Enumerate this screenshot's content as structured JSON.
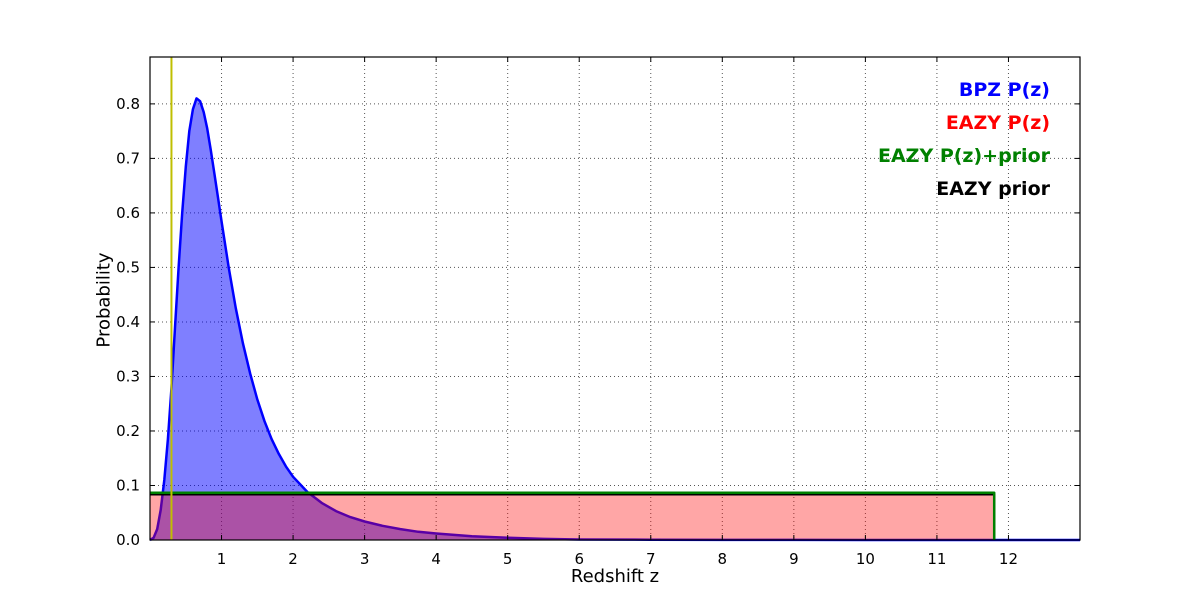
{
  "chart_data": {
    "type": "line",
    "title": "",
    "xlabel": "Redshift z",
    "ylabel": "Probability",
    "xlim": [
      0,
      13
    ],
    "ylim": [
      0,
      0.886
    ],
    "grid": true,
    "legend_position": "upper right",
    "xticks": [
      1,
      2,
      3,
      4,
      5,
      6,
      7,
      8,
      9,
      10,
      11,
      12
    ],
    "xtick_labels": [
      "1",
      "2",
      "3",
      "4",
      "5",
      "6",
      "7",
      "8",
      "9",
      "10",
      "11",
      "12"
    ],
    "yticks": [
      0.0,
      0.1,
      0.2,
      0.3,
      0.4,
      0.5,
      0.6,
      0.7,
      0.8
    ],
    "ytick_labels": [
      "0.0",
      "0.1",
      "0.2",
      "0.3",
      "0.4",
      "0.5",
      "0.6",
      "0.7",
      "0.8"
    ],
    "series": [
      {
        "id": "bpz-pz",
        "name": "BPZ P(z)",
        "color": "#0000ff",
        "fill": "rgba(0,0,255,0.5)",
        "lw": 2.5,
        "points": [
          [
            0.0,
            0.0
          ],
          [
            0.05,
            0.004
          ],
          [
            0.1,
            0.02
          ],
          [
            0.15,
            0.055
          ],
          [
            0.2,
            0.11
          ],
          [
            0.25,
            0.185
          ],
          [
            0.3,
            0.28
          ],
          [
            0.35,
            0.39
          ],
          [
            0.4,
            0.5
          ],
          [
            0.45,
            0.6
          ],
          [
            0.5,
            0.685
          ],
          [
            0.55,
            0.75
          ],
          [
            0.6,
            0.79
          ],
          [
            0.65,
            0.81
          ],
          [
            0.7,
            0.805
          ],
          [
            0.75,
            0.785
          ],
          [
            0.8,
            0.755
          ],
          [
            0.85,
            0.715
          ],
          [
            0.9,
            0.672
          ],
          [
            0.95,
            0.628
          ],
          [
            1.0,
            0.585
          ],
          [
            1.1,
            0.5
          ],
          [
            1.2,
            0.425
          ],
          [
            1.3,
            0.36
          ],
          [
            1.4,
            0.305
          ],
          [
            1.5,
            0.258
          ],
          [
            1.6,
            0.218
          ],
          [
            1.7,
            0.185
          ],
          [
            1.8,
            0.158
          ],
          [
            1.9,
            0.135
          ],
          [
            2.0,
            0.116
          ],
          [
            2.2,
            0.088
          ],
          [
            2.4,
            0.068
          ],
          [
            2.6,
            0.053
          ],
          [
            2.8,
            0.042
          ],
          [
            3.0,
            0.034
          ],
          [
            3.25,
            0.026
          ],
          [
            3.5,
            0.02
          ],
          [
            3.75,
            0.015
          ],
          [
            4.0,
            0.012
          ],
          [
            4.5,
            0.007
          ],
          [
            5.0,
            0.004
          ],
          [
            5.5,
            0.002
          ],
          [
            6.0,
            0.001
          ],
          [
            7.0,
            0.0005
          ],
          [
            8.0,
            0.0002
          ],
          [
            9.0,
            0.0001
          ],
          [
            10.0,
            0.0
          ],
          [
            13.0,
            0.0
          ]
        ]
      },
      {
        "id": "eazy-pz",
        "name": "EAZY P(z)",
        "color": "#ff0000",
        "fill": "rgba(255,0,0,0.35)",
        "lw": 2,
        "points": [
          [
            0,
            0.085
          ],
          [
            11.8,
            0.085
          ],
          [
            11.8,
            0.0
          ]
        ]
      },
      {
        "id": "eazy-prior",
        "name": "EAZY prior",
        "color": "#000000",
        "lw": 2,
        "points": [
          [
            0,
            0.0835
          ],
          [
            11.8,
            0.0835
          ],
          [
            11.8,
            0.0
          ]
        ]
      },
      {
        "id": "eazy-pz-prior",
        "name": "EAZY P(z)+prior",
        "color": "#008000",
        "lw": 2.5,
        "points": [
          [
            0,
            0.0865
          ],
          [
            11.8,
            0.0865
          ],
          [
            11.8,
            0.0
          ]
        ]
      }
    ],
    "vline": {
      "x": 0.3,
      "color": "#bfbf00"
    }
  },
  "legend": {
    "items": [
      {
        "id": "bpz-pz",
        "label": "BPZ P(z)",
        "color": "#0000ff"
      },
      {
        "id": "eazy-pz",
        "label": "EAZY P(z)",
        "color": "#ff0000"
      },
      {
        "id": "eazy-pz-prior",
        "label": "EAZY P(z)+prior",
        "color": "#008000"
      },
      {
        "id": "eazy-prior",
        "label": "EAZY prior",
        "color": "#000000"
      }
    ]
  }
}
